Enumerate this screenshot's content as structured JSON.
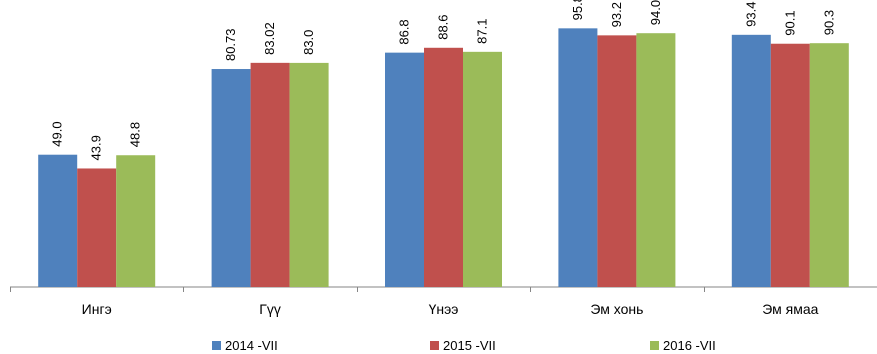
{
  "chart_data": {
    "type": "bar",
    "categories": [
      "Ингэ",
      "Гүү",
      "Үнээ",
      "Эм хонь",
      "Эм ямаа"
    ],
    "series": [
      {
        "name": "2014 -VII",
        "color": "#4F81BD",
        "values": [
          49.0,
          80.73,
          86.8,
          95.8,
          93.4
        ],
        "labels": [
          "49.0",
          "80.73",
          "86.8",
          "95.8",
          "93.4"
        ]
      },
      {
        "name": "2015 -VII",
        "color": "#C0504D",
        "values": [
          43.9,
          83.02,
          88.6,
          93.2,
          90.1
        ],
        "labels": [
          "43.9",
          "83.02",
          "88.6",
          "93.2",
          "90.1"
        ]
      },
      {
        "name": "2016 -VII",
        "color": "#9BBB59",
        "values": [
          48.8,
          83.0,
          87.1,
          94.0,
          90.3
        ],
        "labels": [
          "48.8",
          "83.0",
          "87.1",
          "94.0",
          "90.3"
        ]
      }
    ],
    "ylim": [
      0,
      110
    ],
    "grid": false,
    "data_labels": "rotated-vertical",
    "legend_position": "bottom"
  }
}
